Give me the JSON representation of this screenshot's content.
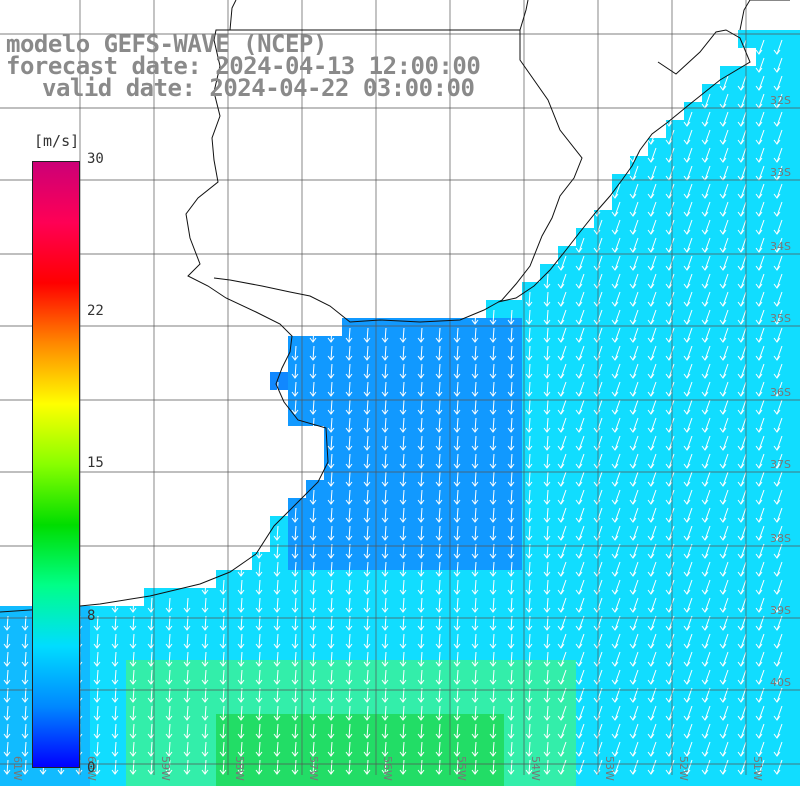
{
  "title": {
    "line1": "modelo GEFS-WAVE (NCEP)",
    "line2": "forecast date: 2024-04-13 12:00:00",
    "line3": "valid date: 2024-04-22 03:00:00"
  },
  "colorbar": {
    "unit": "[m/s]",
    "ticks": [
      "30",
      "22",
      "15",
      "8",
      "0"
    ],
    "range": [
      0,
      30
    ],
    "colors": [
      "#0000ff",
      "#0088ff",
      "#00ddff",
      "#00ff88",
      "#00dd00",
      "#88ff00",
      "#ffff00",
      "#ff8800",
      "#ff0000",
      "#ff0055",
      "#cc0077"
    ]
  },
  "map": {
    "lat_labels": [
      "32S",
      "33S",
      "34S",
      "35S",
      "36S",
      "37S",
      "38S",
      "39S",
      "40S"
    ],
    "lon_labels": [
      "61W",
      "60W",
      "59W",
      "58W",
      "57W",
      "56W",
      "55W",
      "54W",
      "53W",
      "52W",
      "51W"
    ],
    "land_color": "#ffffff",
    "grid_color": "#555555",
    "arrow_color": "#ffffff"
  }
}
